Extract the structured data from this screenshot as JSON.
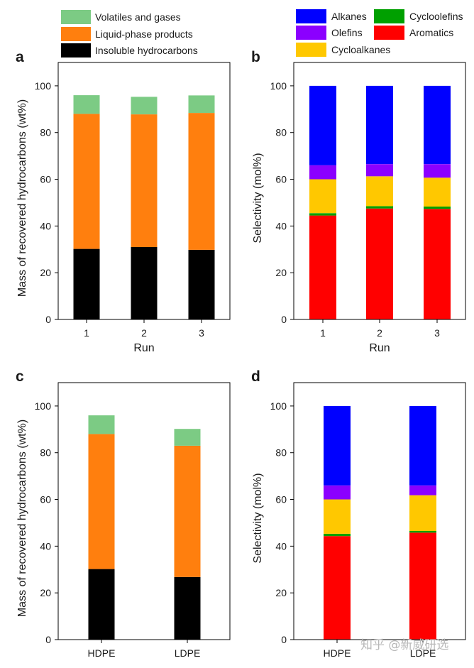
{
  "colors": {
    "volatiles": "#7ccb84",
    "liquid": "#ff7f0e",
    "insoluble": "#000000",
    "alkanes": "#0000ff",
    "olefins": "#8b00ff",
    "cycloalkanes": "#ffc800",
    "cycloolefins": "#00a000",
    "aromatics": "#ff0000"
  },
  "legend_left": [
    {
      "key": "volatiles",
      "label": "Volatiles and gases"
    },
    {
      "key": "liquid",
      "label": "Liquid-phase products"
    },
    {
      "key": "insoluble",
      "label": "Insoluble hydrocarbons"
    }
  ],
  "legend_right": [
    {
      "key": "alkanes",
      "label": "Alkanes"
    },
    {
      "key": "cycloolefins",
      "label": "Cycloolefins"
    },
    {
      "key": "olefins",
      "label": "Olefins"
    },
    {
      "key": "aromatics",
      "label": "Aromatics"
    },
    {
      "key": "cycloalkanes",
      "label": "Cycloalkanes"
    }
  ],
  "watermark": "知乎 @新威研选",
  "chart_data": [
    {
      "panel": "a",
      "type": "bar",
      "stacked": true,
      "categories": [
        "1",
        "2",
        "3"
      ],
      "xlabel": "Run",
      "ylabel": "Mass of recovered hydrocarbons (wt%)",
      "ylim": [
        0,
        110
      ],
      "yticks": [
        0,
        20,
        40,
        60,
        80,
        100
      ],
      "series": [
        {
          "name": "Insoluble hydrocarbons",
          "key": "insoluble",
          "values": [
            30.2,
            31.0,
            29.8
          ]
        },
        {
          "name": "Liquid-phase products",
          "key": "liquid",
          "values": [
            57.8,
            56.8,
            58.6
          ]
        },
        {
          "name": "Volatiles and gases",
          "key": "volatiles",
          "values": [
            8.0,
            7.5,
            7.5
          ]
        }
      ]
    },
    {
      "panel": "b",
      "type": "bar",
      "stacked": true,
      "categories": [
        "1",
        "2",
        "3"
      ],
      "xlabel": "Run",
      "ylabel": "Selectivity (mol%)",
      "ylim": [
        0,
        110
      ],
      "yticks": [
        0,
        20,
        40,
        60,
        80,
        100
      ],
      "series": [
        {
          "name": "Aromatics",
          "key": "aromatics",
          "values": [
            44.5,
            47.5,
            47.3
          ]
        },
        {
          "name": "Cycloolefins",
          "key": "cycloolefins",
          "values": [
            1.0,
            1.0,
            1.0
          ]
        },
        {
          "name": "Cycloalkanes",
          "key": "cycloalkanes",
          "values": [
            14.5,
            12.8,
            12.4
          ]
        },
        {
          "name": "Olefins",
          "key": "olefins",
          "values": [
            6.0,
            5.2,
            5.8
          ]
        },
        {
          "name": "Alkanes",
          "key": "alkanes",
          "values": [
            34.0,
            33.5,
            33.5
          ]
        }
      ]
    },
    {
      "panel": "c",
      "type": "bar",
      "stacked": true,
      "categories": [
        "HDPE",
        "LDPE"
      ],
      "xlabel": "",
      "ylabel": "Mass of recovered hydrocarbons (wt%)",
      "ylim": [
        0,
        110
      ],
      "yticks": [
        0,
        20,
        40,
        60,
        80,
        100
      ],
      "series": [
        {
          "name": "Insoluble hydrocarbons",
          "key": "insoluble",
          "values": [
            30.2,
            26.8
          ]
        },
        {
          "name": "Liquid-phase products",
          "key": "liquid",
          "values": [
            57.8,
            56.2
          ]
        },
        {
          "name": "Volatiles and gases",
          "key": "volatiles",
          "values": [
            8.0,
            7.2
          ]
        }
      ]
    },
    {
      "panel": "d",
      "type": "bar",
      "stacked": true,
      "categories": [
        "HDPE",
        "LDPE"
      ],
      "xlabel": "",
      "ylabel": "Selectivity (mol%)",
      "ylim": [
        0,
        110
      ],
      "yticks": [
        0,
        20,
        40,
        60,
        80,
        100
      ],
      "series": [
        {
          "name": "Aromatics",
          "key": "aromatics",
          "values": [
            44.3,
            45.8
          ]
        },
        {
          "name": "Cycloolefins",
          "key": "cycloolefins",
          "values": [
            1.0,
            0.7
          ]
        },
        {
          "name": "Cycloalkanes",
          "key": "cycloalkanes",
          "values": [
            14.7,
            15.3
          ]
        },
        {
          "name": "Olefins",
          "key": "olefins",
          "values": [
            6.0,
            4.2
          ]
        },
        {
          "name": "Alkanes",
          "key": "alkanes",
          "values": [
            34.0,
            34.0
          ]
        }
      ]
    }
  ]
}
